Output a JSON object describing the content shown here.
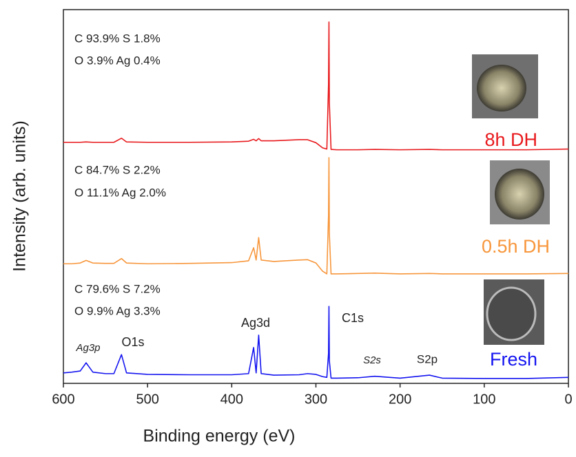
{
  "chart_data": {
    "type": "line",
    "xlabel": "Binding energy (eV)",
    "ylabel": "Intensity (arb. units)",
    "xlim": [
      600,
      0
    ],
    "xticks": [
      600,
      500,
      400,
      300,
      200,
      100,
      0
    ],
    "ylim": [
      0,
      100
    ],
    "x": [
      600,
      590,
      580,
      573,
      565,
      550,
      540,
      531,
      525,
      500,
      450,
      400,
      380,
      374,
      371,
      368,
      365,
      350,
      320,
      310,
      300,
      292,
      287,
      285,
      284.5,
      284,
      282,
      275,
      250,
      230,
      200,
      165,
      150,
      100,
      50,
      0
    ],
    "series": [
      {
        "name": "8h DH",
        "color": "#e8191c",
        "composition": [
          "C 93.9% S 1.8%",
          "O 3.9% Ag 0.4%"
        ],
        "values": [
          64.5,
          64.5,
          64.5,
          64.6,
          64.5,
          64.5,
          64.5,
          65.6,
          64.6,
          64.5,
          64.5,
          64.6,
          64.8,
          65.3,
          64.9,
          65.5,
          64.9,
          64.9,
          65.2,
          65.2,
          64.4,
          63.0,
          62.7,
          80,
          96.7,
          75,
          62.6,
          62.5,
          62.5,
          62.6,
          62.5,
          62.6,
          62.5,
          62.5,
          62.5,
          62.7
        ]
      },
      {
        "name": "0.5h DH",
        "color": "#f7963b",
        "composition": [
          "C 84.7% S 2.2%",
          "O 11.1% Ag 2.0%"
        ],
        "values": [
          32.0,
          32.0,
          32.2,
          32.9,
          32.2,
          32.1,
          32.1,
          33.4,
          32.2,
          32.0,
          32.1,
          32.3,
          32.8,
          36.3,
          33.0,
          39.0,
          33.0,
          32.6,
          33.0,
          33.1,
          32.2,
          30.0,
          29.3,
          45,
          60.4,
          40,
          29.3,
          29.3,
          29.4,
          29.5,
          29.3,
          29.4,
          29.3,
          29.3,
          29.3,
          29.4
        ]
      },
      {
        "name": "Fresh",
        "color": "#1414f0",
        "composition": [
          "C 79.6% S 7.2%",
          "O 9.9% Ag 3.3%"
        ],
        "values": [
          2.8,
          3.0,
          3.3,
          5.5,
          3.0,
          2.6,
          2.6,
          7.7,
          2.8,
          2.4,
          2.3,
          2.3,
          2.6,
          9.6,
          2.8,
          12.9,
          2.6,
          2.2,
          2.3,
          2.6,
          2.4,
          1.8,
          1.6,
          8,
          20.6,
          6,
          1.4,
          1.4,
          1.5,
          1.9,
          1.4,
          2.2,
          1.4,
          1.3,
          1.3,
          1.6
        ]
      }
    ],
    "peak_labels": [
      "Ag3p",
      "O1s",
      "Ag3d",
      "C1s",
      "S2s",
      "S2p"
    ]
  }
}
